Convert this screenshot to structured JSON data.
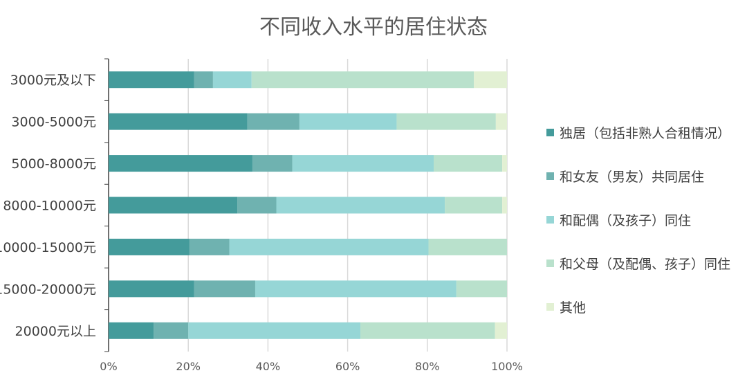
{
  "chart_data": {
    "type": "bar",
    "orientation": "horizontal",
    "stacked": "percent",
    "title": "不同收入水平的居住状态",
    "categories": [
      "3000元及以下",
      "3000-5000元",
      "5000-8000元",
      "8000-10000元",
      "10000-15000元",
      "15000-20000元",
      "20000元以上"
    ],
    "series": [
      {
        "name": "独居（包括非熟人合租情况）",
        "color": "#449b9b",
        "values": [
          21.5,
          34.8,
          36.1,
          32.3,
          20.3,
          21.5,
          11.3
        ]
      },
      {
        "name": "和女友（男友）共同居住",
        "color": "#6fb2b0",
        "values": [
          4.7,
          13.1,
          10.0,
          9.8,
          10.0,
          15.3,
          8.7
        ]
      },
      {
        "name": "和配偶（及孩子）同住",
        "color": "#96d6d6",
        "values": [
          9.7,
          24.4,
          35.5,
          42.3,
          50.0,
          50.5,
          43.2
        ]
      },
      {
        "name": "和父母（及配偶、孩子）同住",
        "color": "#b9e1cc",
        "values": [
          55.8,
          24.9,
          17.2,
          14.4,
          19.7,
          12.7,
          33.8
        ]
      },
      {
        "name": "其他",
        "color": "#e2f0d3",
        "values": [
          8.3,
          2.8,
          1.2,
          1.2,
          0,
          0,
          3.0
        ]
      }
    ],
    "xlim": [
      0,
      100
    ],
    "xticks": [
      "0%",
      "20%",
      "40%",
      "60%",
      "80%",
      "100%"
    ],
    "grid": true,
    "legend": "right"
  }
}
